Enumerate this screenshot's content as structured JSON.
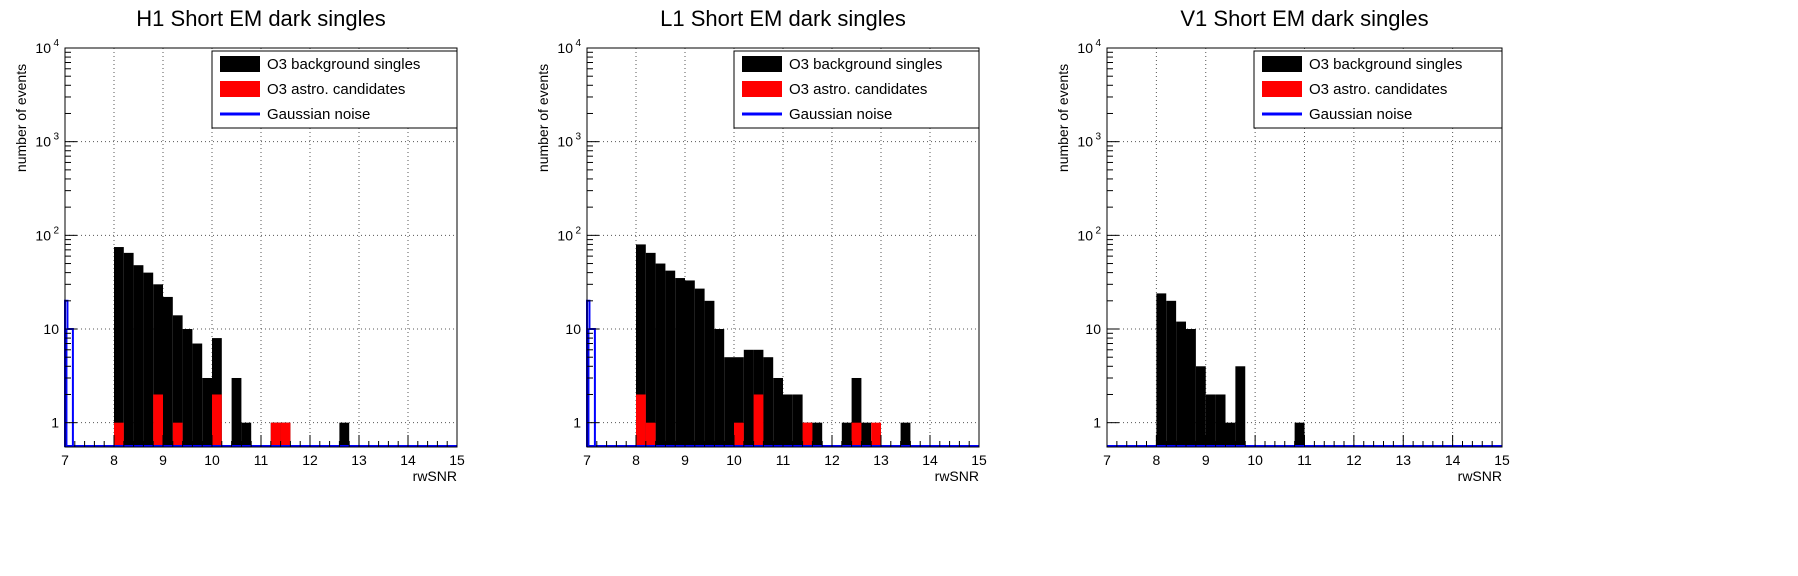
{
  "colors": {
    "background": "#000000",
    "astro": "#ff0000",
    "gaussian": "#0000ff",
    "grid": "#555555"
  },
  "chart_data": [
    {
      "type": "bar",
      "title": "H1 Short EM dark singles",
      "xlabel": "rwSNR",
      "ylabel": "number of events",
      "log_y": true,
      "xlim": [
        7,
        15
      ],
      "ylim": [
        0.55,
        10000
      ],
      "bin_width": 0.2,
      "xticks": [
        "7",
        "8",
        "9",
        "10",
        "11",
        "12",
        "13",
        "14",
        "15"
      ],
      "yticks": [
        {
          "value": 1,
          "label": "1"
        },
        {
          "value": 10,
          "label": "10"
        },
        {
          "value": 100,
          "label": "10",
          "exp": "2"
        },
        {
          "value": 1000,
          "label": "10",
          "exp": "3"
        },
        {
          "value": 10000,
          "label": "10",
          "exp": "4"
        }
      ],
      "grid": true,
      "legend_position": "top-right",
      "legend": [
        "O3 background singles",
        "O3 astro. candidates",
        "Gaussian noise"
      ],
      "series": [
        {
          "name": "O3 background singles",
          "style": "filled",
          "color": "#000000",
          "bins": [
            [
              8.0,
              75
            ],
            [
              8.2,
              65
            ],
            [
              8.4,
              48
            ],
            [
              8.6,
              40
            ],
            [
              8.8,
              30
            ],
            [
              9.0,
              22
            ],
            [
              9.2,
              14
            ],
            [
              9.4,
              10
            ],
            [
              9.6,
              7
            ],
            [
              9.8,
              3
            ],
            [
              10.0,
              8
            ],
            [
              10.2,
              0
            ],
            [
              10.4,
              3
            ],
            [
              10.6,
              1
            ],
            [
              11.2,
              1
            ],
            [
              11.4,
              1
            ],
            [
              12.6,
              1
            ]
          ]
        },
        {
          "name": "O3 astro. candidates",
          "style": "filled",
          "color": "#ff0000",
          "bins": [
            [
              8.0,
              1
            ],
            [
              8.8,
              2
            ],
            [
              9.2,
              1
            ],
            [
              10.0,
              2
            ],
            [
              11.2,
              1
            ],
            [
              11.4,
              1
            ]
          ]
        },
        {
          "name": "Gaussian noise",
          "style": "step",
          "color": "#0000ff",
          "bins": [
            [
              7.0,
              20
            ],
            [
              7.05,
              10
            ],
            [
              7.1,
              10
            ]
          ]
        }
      ]
    },
    {
      "type": "bar",
      "title": "L1 Short EM dark singles",
      "xlabel": "rwSNR",
      "ylabel": "number of events",
      "log_y": true,
      "xlim": [
        7,
        15
      ],
      "ylim": [
        0.55,
        10000
      ],
      "bin_width": 0.2,
      "xticks": [
        "7",
        "8",
        "9",
        "10",
        "11",
        "12",
        "13",
        "14",
        "15"
      ],
      "yticks": [
        {
          "value": 1,
          "label": "1"
        },
        {
          "value": 10,
          "label": "10"
        },
        {
          "value": 100,
          "label": "10",
          "exp": "2"
        },
        {
          "value": 1000,
          "label": "10",
          "exp": "3"
        },
        {
          "value": 10000,
          "label": "10",
          "exp": "4"
        }
      ],
      "grid": true,
      "legend_position": "top-right",
      "legend": [
        "O3 background singles",
        "O3 astro. candidates",
        "Gaussian noise"
      ],
      "series": [
        {
          "name": "O3 background singles",
          "style": "filled",
          "color": "#000000",
          "bins": [
            [
              8.0,
              80
            ],
            [
              8.2,
              65
            ],
            [
              8.4,
              50
            ],
            [
              8.6,
              42
            ],
            [
              8.8,
              35
            ],
            [
              9.0,
              33
            ],
            [
              9.2,
              27
            ],
            [
              9.4,
              20
            ],
            [
              9.6,
              10
            ],
            [
              9.8,
              5
            ],
            [
              10.0,
              5
            ],
            [
              10.2,
              6
            ],
            [
              10.4,
              6
            ],
            [
              10.6,
              5
            ],
            [
              10.8,
              3
            ],
            [
              11.0,
              2
            ],
            [
              11.2,
              2
            ],
            [
              11.4,
              1
            ],
            [
              11.6,
              1
            ],
            [
              12.2,
              1
            ],
            [
              12.4,
              3
            ],
            [
              12.6,
              1
            ],
            [
              13.4,
              1
            ]
          ]
        },
        {
          "name": "O3 astro. candidates",
          "style": "filled",
          "color": "#ff0000",
          "bins": [
            [
              8.0,
              2
            ],
            [
              8.2,
              1
            ],
            [
              10.0,
              1
            ],
            [
              10.4,
              2
            ],
            [
              11.4,
              1
            ],
            [
              12.4,
              1
            ],
            [
              12.8,
              1
            ]
          ]
        },
        {
          "name": "Gaussian noise",
          "style": "step",
          "color": "#0000ff",
          "bins": [
            [
              7.0,
              20
            ],
            [
              7.05,
              10
            ],
            [
              7.1,
              10
            ]
          ]
        }
      ]
    },
    {
      "type": "bar",
      "title": "V1 Short EM dark singles",
      "xlabel": "rwSNR",
      "ylabel": "number of events",
      "log_y": true,
      "xlim": [
        7,
        15
      ],
      "ylim": [
        0.55,
        10000
      ],
      "bin_width": 0.2,
      "xticks": [
        "7",
        "8",
        "9",
        "10",
        "11",
        "12",
        "13",
        "14",
        "15"
      ],
      "yticks": [
        {
          "value": 1,
          "label": "1"
        },
        {
          "value": 10,
          "label": "10"
        },
        {
          "value": 100,
          "label": "10",
          "exp": "2"
        },
        {
          "value": 1000,
          "label": "10",
          "exp": "3"
        },
        {
          "value": 10000,
          "label": "10",
          "exp": "4"
        }
      ],
      "grid": true,
      "legend_position": "top-right",
      "legend": [
        "O3 background singles",
        "O3 astro. candidates",
        "Gaussian noise"
      ],
      "series": [
        {
          "name": "O3 background singles",
          "style": "filled",
          "color": "#000000",
          "bins": [
            [
              8.0,
              24
            ],
            [
              8.2,
              20
            ],
            [
              8.4,
              12
            ],
            [
              8.6,
              10
            ],
            [
              8.8,
              4
            ],
            [
              9.0,
              2
            ],
            [
              9.2,
              2
            ],
            [
              9.4,
              1
            ],
            [
              9.6,
              4
            ],
            [
              10.8,
              1
            ]
          ]
        },
        {
          "name": "O3 astro. candidates",
          "style": "filled",
          "color": "#ff0000",
          "bins": []
        },
        {
          "name": "Gaussian noise",
          "style": "step",
          "color": "#0000ff",
          "bins": []
        }
      ]
    }
  ]
}
